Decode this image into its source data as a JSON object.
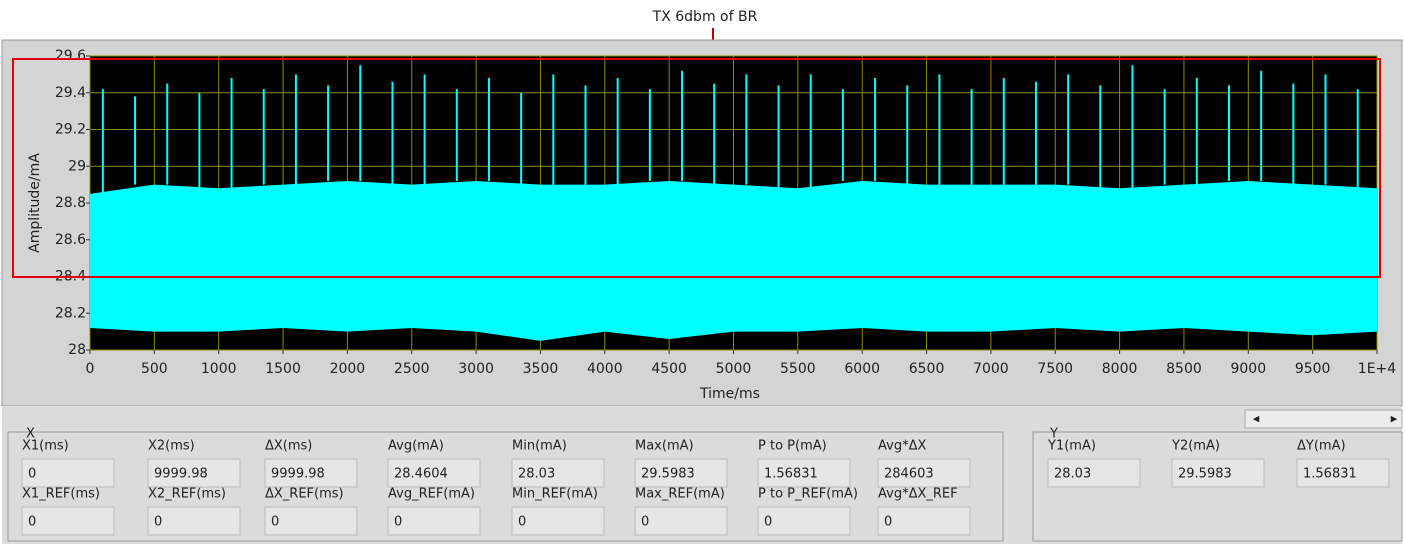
{
  "annotation": "TX 6dbm of BR",
  "chart_data": {
    "type": "range-area",
    "xlabel": "Time/ms",
    "ylabel": "Amplitude/mA",
    "xlim": [
      0,
      10000
    ],
    "ylim": [
      28,
      29.6
    ],
    "xticks": [
      0,
      500,
      1000,
      1500,
      2000,
      2500,
      3000,
      3500,
      4000,
      4500,
      5000,
      5500,
      6000,
      6500,
      7000,
      7500,
      8000,
      8500,
      9000,
      9500,
      {
        "value": 10000,
        "label": "1E+4"
      }
    ],
    "yticks": [
      28,
      28.2,
      28.4,
      28.6,
      28.8,
      29,
      29.2,
      29.4,
      29.6
    ],
    "grid": true,
    "grid_color": "#8c8c00",
    "background": "#000000",
    "x": [
      0,
      500,
      1000,
      1500,
      2000,
      2500,
      3000,
      3500,
      4000,
      4500,
      5000,
      5500,
      6000,
      6500,
      7000,
      7500,
      8000,
      8500,
      9000,
      9500,
      10000
    ],
    "series": [
      {
        "color": "#00ffff",
        "values": [
          28.85,
          28.9,
          28.88,
          28.9,
          28.92,
          28.9,
          28.92,
          28.9,
          28.9,
          28.92,
          28.9,
          28.88,
          28.92,
          28.9,
          28.9,
          28.9,
          28.88,
          28.9,
          28.92,
          28.9,
          28.88
        ]
      },
      {
        "color": "#00ffff",
        "values": [
          28.12,
          28.1,
          28.1,
          28.12,
          28.1,
          28.12,
          28.1,
          28.05,
          28.1,
          28.06,
          28.1,
          28.1,
          28.12,
          28.1,
          28.1,
          28.12,
          28.1,
          28.12,
          28.1,
          28.08,
          28.1
        ]
      }
    ],
    "spikes": {
      "color": "#00ffff",
      "x": [
        100,
        350,
        600,
        850,
        1100,
        1350,
        1600,
        1850,
        2100,
        2350,
        2600,
        2850,
        3100,
        3350,
        3600,
        3850,
        4100,
        4350,
        4600,
        4850,
        5100,
        5350,
        5600,
        5850,
        6100,
        6350,
        6600,
        6850,
        7100,
        7350,
        7600,
        7850,
        8100,
        8350,
        8600,
        8850,
        9100,
        9350,
        9600,
        9850
      ],
      "values": [
        29.42,
        29.38,
        29.45,
        29.4,
        29.48,
        29.42,
        29.5,
        29.44,
        29.55,
        29.46,
        29.5,
        29.42,
        29.48,
        29.4,
        29.5,
        29.44,
        29.48,
        29.42,
        29.52,
        29.45,
        29.5,
        29.44,
        29.5,
        29.42,
        29.48,
        29.44,
        29.5,
        29.42,
        29.48,
        29.46,
        29.5,
        29.44,
        29.55,
        29.42,
        29.48,
        29.44,
        29.52,
        29.45,
        29.5,
        29.42
      ]
    }
  },
  "cursor_panel": {
    "title": "X",
    "fields": [
      {
        "label": "X1(ms)",
        "value": "0"
      },
      {
        "label": "X2(ms)",
        "value": "9999.98"
      },
      {
        "label": "ΔX(ms)",
        "value": "9999.98"
      },
      {
        "label": "Avg(mA)",
        "value": "28.4604"
      },
      {
        "label": "Min(mA)",
        "value": "28.03"
      },
      {
        "label": "Max(mA)",
        "value": "29.5983"
      },
      {
        "label": "P to P(mA)",
        "value": "1.56831"
      },
      {
        "label": "Avg*ΔX",
        "value": "284603"
      },
      {
        "label": "X1_REF(ms)",
        "value": "0"
      },
      {
        "label": "X2_REF(ms)",
        "value": "0"
      },
      {
        "label": "ΔX_REF(ms)",
        "value": "0"
      },
      {
        "label": "Avg_REF(mA)",
        "value": "0"
      },
      {
        "label": "Min_REF(mA)",
        "value": "0"
      },
      {
        "label": "Max_REF(mA)",
        "value": "0"
      },
      {
        "label": "P to P_REF(mA)",
        "value": "0"
      },
      {
        "label": "Avg*ΔX_REF",
        "value": "0"
      }
    ]
  },
  "y_panel": {
    "title": "Y",
    "fields": [
      {
        "label": "Y1(mA)",
        "value": "28.03"
      },
      {
        "label": "Y2(mA)",
        "value": "29.5983"
      },
      {
        "label": "ΔY(mA)",
        "value": "1.56831"
      }
    ]
  }
}
